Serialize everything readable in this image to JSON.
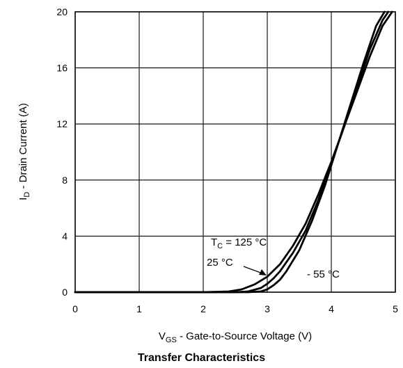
{
  "chart_data": {
    "type": "line",
    "title": "Transfer Characteristics",
    "xlabel": {
      "main": "V",
      "sub": "GS",
      "rest": " - Gate-to-Source Voltage (V)"
    },
    "ylabel": {
      "main": "I",
      "sub": "D",
      "rest": " - Drain Current (A)"
    },
    "xlim": [
      0,
      5
    ],
    "ylim": [
      0,
      20
    ],
    "x_ticks": [
      "0",
      "1",
      "2",
      "3",
      "4",
      "5"
    ],
    "y_ticks": [
      "0",
      "4",
      "8",
      "12",
      "16",
      "20"
    ],
    "grid": true,
    "annotations": {
      "t125": {
        "main": "T",
        "sub": "C",
        "rest": " = 125 °C"
      },
      "t25": "25 °C",
      "tm55": "- 55 °C"
    },
    "series": [
      {
        "name": "T_C = 125 °C",
        "x": [
          0,
          2.0,
          2.4,
          2.6,
          2.8,
          3.0,
          3.2,
          3.4,
          3.6,
          3.8,
          4.0,
          4.2,
          4.4,
          4.6,
          4.8,
          4.95
        ],
        "y": [
          0,
          0,
          0.05,
          0.2,
          0.55,
          1.1,
          2.0,
          3.3,
          4.9,
          7.0,
          9.3,
          11.8,
          14.3,
          16.8,
          19.0,
          20
        ]
      },
      {
        "name": "25 °C",
        "x": [
          0,
          2.5,
          2.7,
          2.9,
          3.0,
          3.1,
          3.2,
          3.4,
          3.6,
          3.8,
          4.0,
          4.2,
          4.4,
          4.6,
          4.8,
          4.89
        ],
        "y": [
          0,
          0,
          0.05,
          0.3,
          0.6,
          1.0,
          1.5,
          2.8,
          4.4,
          6.6,
          9.2,
          11.8,
          14.6,
          17.3,
          19.4,
          20
        ]
      },
      {
        "name": "- 55 °C",
        "x": [
          0,
          2.7,
          2.9,
          3.0,
          3.1,
          3.2,
          3.3,
          3.5,
          3.7,
          3.9,
          4.1,
          4.3,
          4.5,
          4.7,
          4.83
        ],
        "y": [
          0,
          0,
          0.05,
          0.2,
          0.5,
          0.9,
          1.5,
          3.0,
          5.1,
          7.6,
          10.5,
          13.4,
          16.3,
          19.0,
          20
        ]
      }
    ]
  }
}
